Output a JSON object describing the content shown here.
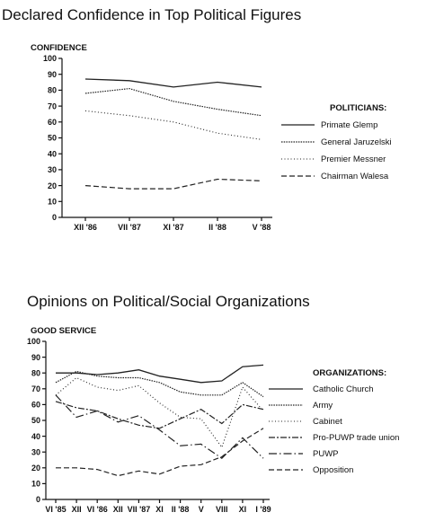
{
  "chart_data": [
    {
      "type": "line",
      "title": "Declared Confidence in Top Political Figures",
      "ylabel": "CONFIDENCE",
      "ylim": [
        0,
        100
      ],
      "yticks": [
        0,
        10,
        20,
        30,
        40,
        50,
        60,
        70,
        80,
        90,
        100
      ],
      "categories": [
        "XII '86",
        "VII '87",
        "XI '87",
        "II '88",
        "V '88"
      ],
      "legend_title": "POLITICIANS:",
      "series": [
        {
          "name": "Primate Glemp",
          "style": "solid",
          "values": [
            87,
            86,
            82,
            85,
            82
          ]
        },
        {
          "name": "General Jaruzelski",
          "style": "densedot",
          "values": [
            78,
            81,
            73,
            68,
            64
          ]
        },
        {
          "name": "Premier Messner",
          "style": "dotted",
          "values": [
            67,
            64,
            60,
            53,
            49
          ]
        },
        {
          "name": "Chairman Walesa",
          "style": "dashed",
          "values": [
            20,
            18,
            18,
            24,
            23
          ]
        }
      ]
    },
    {
      "type": "line",
      "title": "Opinions on Political/Social Organizations",
      "ylabel": "GOOD SERVICE",
      "ylim": [
        0,
        100
      ],
      "yticks": [
        0,
        10,
        20,
        30,
        40,
        50,
        60,
        70,
        80,
        90,
        100
      ],
      "categories": [
        "VI '85",
        "XII '85",
        "VI '86",
        "XII '86",
        "VII '87",
        "XI '87",
        "II '88",
        "V '88",
        "VIII '88",
        "XI '88",
        "I '89"
      ],
      "tick_labels": [
        "VI '85",
        "XII",
        "VI '86",
        "XII",
        "VII '87",
        "XI",
        "II '88",
        "V",
        "VIII",
        "XI",
        "I '89"
      ],
      "legend_title": "ORGANIZATIONS:",
      "series": [
        {
          "name": "Catholic Church",
          "style": "solid",
          "values": [
            80,
            80,
            79,
            80,
            82,
            78,
            76,
            74,
            75,
            84,
            85
          ]
        },
        {
          "name": "Army",
          "style": "densedot",
          "values": [
            74,
            81,
            78,
            77,
            77,
            74,
            68,
            66,
            66,
            74,
            65
          ]
        },
        {
          "name": "Cabinet",
          "style": "dotted",
          "values": [
            66,
            77,
            71,
            69,
            72,
            61,
            52,
            51,
            33,
            71,
            56
          ]
        },
        {
          "name": "Pro-PUWP trade union",
          "style": "dashdot",
          "values": [
            62,
            58,
            56,
            51,
            47,
            45,
            51,
            57,
            48,
            60,
            57
          ]
        },
        {
          "name": "PUWP",
          "style": "dashdot2",
          "values": [
            66,
            52,
            56,
            49,
            53,
            44,
            34,
            35,
            26,
            39,
            26
          ]
        },
        {
          "name": "Opposition",
          "style": "dashed",
          "values": [
            20,
            20,
            19,
            15,
            18,
            16,
            21,
            22,
            27,
            37,
            45
          ]
        }
      ]
    }
  ]
}
